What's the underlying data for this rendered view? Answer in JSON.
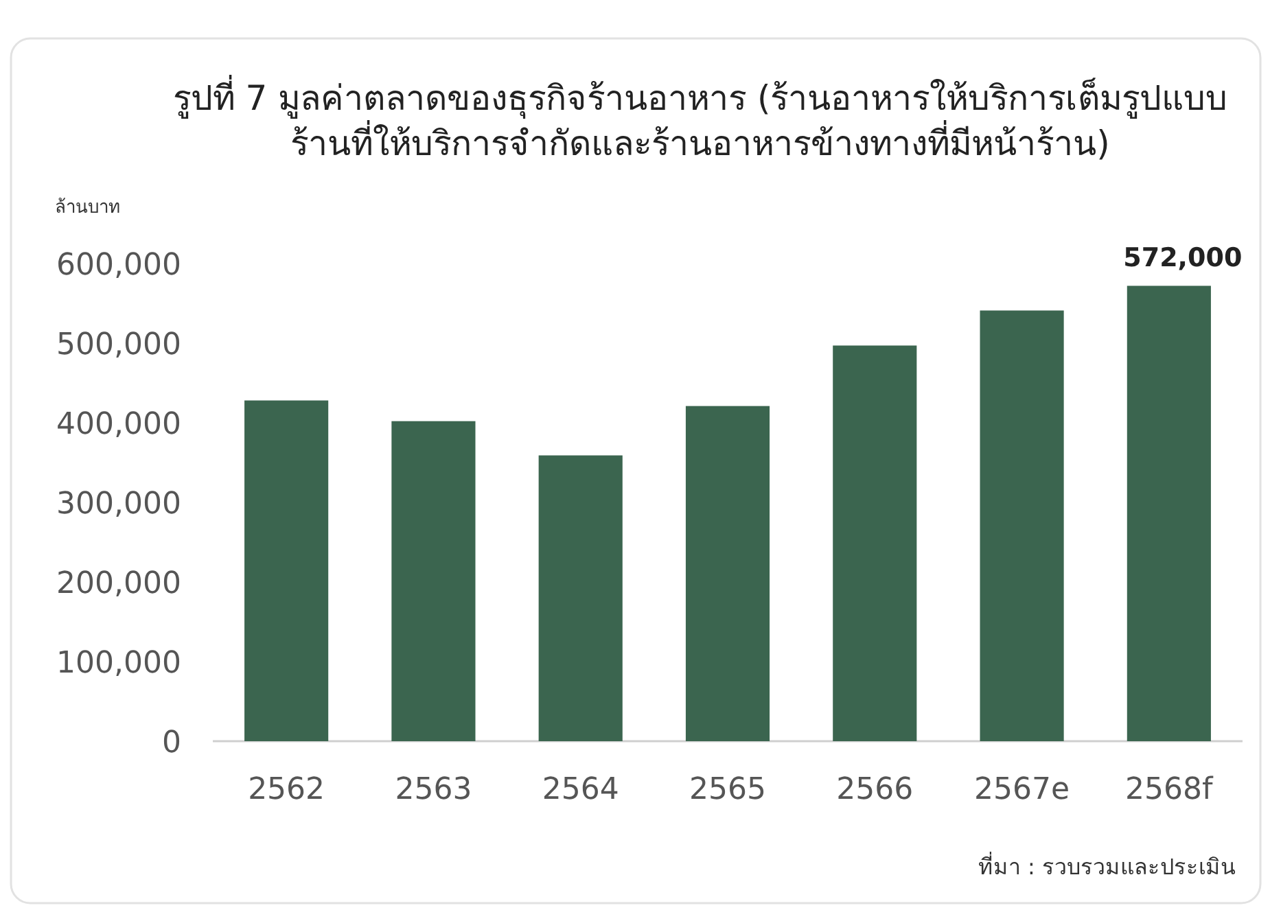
{
  "chart_data": {
    "type": "bar",
    "title": "รูปที่ 7  มูลค่าตลาดของธุรกิจร้านอาหาร (ร้านอาหารให้บริการเต็มรูปแบบ ร้านที่ให้บริการจำกัดและร้านอาหารข้างทางที่มีหน้าร้าน)",
    "ylabel": "ล้านบาท",
    "categories": [
      "2562",
      "2563",
      "2564",
      "2565",
      "2566",
      "2567e",
      "2568f"
    ],
    "values": [
      428000,
      402000,
      359000,
      421000,
      497000,
      541000,
      572000
    ],
    "value_labels": [
      null,
      null,
      null,
      null,
      null,
      null,
      "572,000"
    ],
    "color": "#3b654f",
    "ylim": [
      0,
      600000
    ],
    "yticks": [
      {
        "value": 0,
        "label": "0"
      },
      {
        "value": 100000,
        "label": "100,000"
      },
      {
        "value": 200000,
        "label": "200,000"
      },
      {
        "value": 300000,
        "label": "300,000"
      },
      {
        "value": 400000,
        "label": "400,000"
      },
      {
        "value": 500000,
        "label": "500,000"
      },
      {
        "value": 600000,
        "label": "600,000"
      }
    ],
    "grid": false,
    "annotations": [
      "ที่มา : รวบรวมและประเมิน"
    ]
  }
}
